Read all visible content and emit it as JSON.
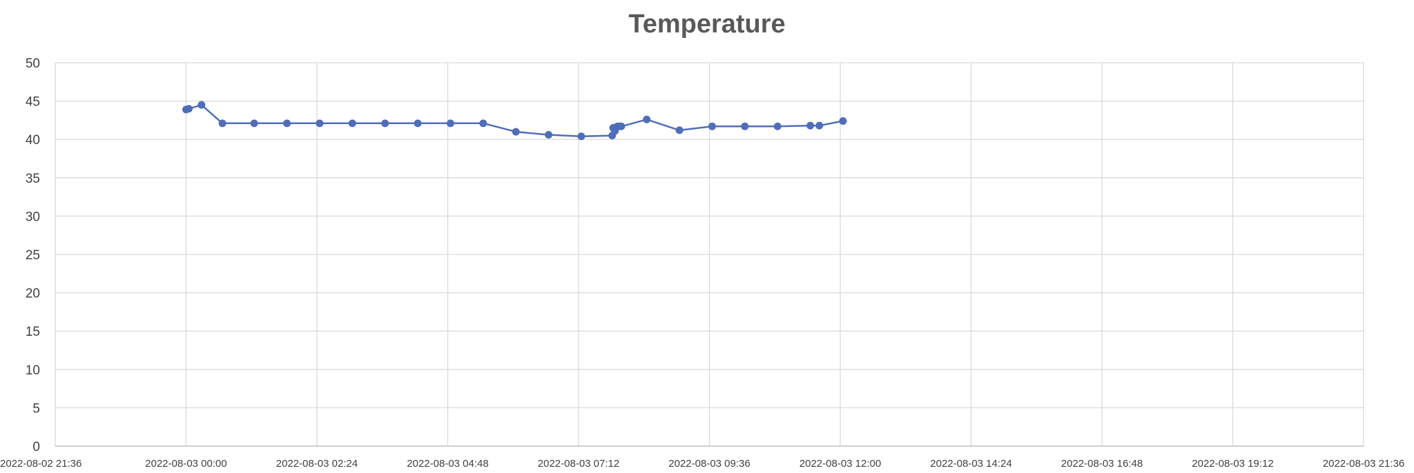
{
  "chart_data": {
    "type": "line",
    "title": "Temperature",
    "xlabel": "",
    "ylabel": "",
    "ylim": [
      0,
      50
    ],
    "y_ticks": [
      "0",
      "5",
      "10",
      "15",
      "20",
      "25",
      "30",
      "35",
      "40",
      "45",
      "50"
    ],
    "xlim": [
      "2022-08-02 21:36",
      "2022-08-03 21:36"
    ],
    "x_ticks": [
      "2022-08-02 21:36",
      "2022-08-03 00:00",
      "2022-08-03 02:24",
      "2022-08-03 04:48",
      "2022-08-03 07:12",
      "2022-08-03 09:36",
      "2022-08-03 12:00",
      "2022-08-03 14:24",
      "2022-08-03 16:48",
      "2022-08-03 19:12",
      "2022-08-03 21:36"
    ],
    "grid": true,
    "legend": "none",
    "colors": {
      "series": "#4f6db8",
      "grid": "#d9d9d9",
      "axis": "#bfbfbf",
      "title": "#595959",
      "tick_text": "#404040"
    },
    "series": [
      {
        "points": [
          {
            "x": "2022-08-03 00:00",
            "y": 43.9
          },
          {
            "x": "2022-08-03 00:03",
            "y": 44.0
          },
          {
            "x": "2022-08-03 00:17",
            "y": 44.5
          },
          {
            "x": "2022-08-03 00:40",
            "y": 42.1
          },
          {
            "x": "2022-08-03 01:15",
            "y": 42.1
          },
          {
            "x": "2022-08-03 01:51",
            "y": 42.1
          },
          {
            "x": "2022-08-03 02:27",
            "y": 42.1
          },
          {
            "x": "2022-08-03 03:03",
            "y": 42.1
          },
          {
            "x": "2022-08-03 03:39",
            "y": 42.1
          },
          {
            "x": "2022-08-03 04:15",
            "y": 42.1
          },
          {
            "x": "2022-08-03 04:51",
            "y": 42.1
          },
          {
            "x": "2022-08-03 05:27",
            "y": 42.1
          },
          {
            "x": "2022-08-03 06:03",
            "y": 41.0
          },
          {
            "x": "2022-08-03 06:39",
            "y": 40.6
          },
          {
            "x": "2022-08-03 07:15",
            "y": 40.4
          },
          {
            "x": "2022-08-03 07:49",
            "y": 40.5
          },
          {
            "x": "2022-08-03 07:50",
            "y": 41.5
          },
          {
            "x": "2022-08-03 07:52",
            "y": 41.1
          },
          {
            "x": "2022-08-03 07:53",
            "y": 41.6
          },
          {
            "x": "2022-08-03 07:55",
            "y": 41.7
          },
          {
            "x": "2022-08-03 07:57",
            "y": 41.7
          },
          {
            "x": "2022-08-03 07:59",
            "y": 41.7
          },
          {
            "x": "2022-08-03 08:27",
            "y": 42.6
          },
          {
            "x": "2022-08-03 09:03",
            "y": 41.2
          },
          {
            "x": "2022-08-03 09:39",
            "y": 41.7
          },
          {
            "x": "2022-08-03 10:15",
            "y": 41.7
          },
          {
            "x": "2022-08-03 10:51",
            "y": 41.7
          },
          {
            "x": "2022-08-03 11:27",
            "y": 41.8
          },
          {
            "x": "2022-08-03 11:37",
            "y": 41.8
          },
          {
            "x": "2022-08-03 12:03",
            "y": 42.4
          }
        ]
      }
    ]
  }
}
